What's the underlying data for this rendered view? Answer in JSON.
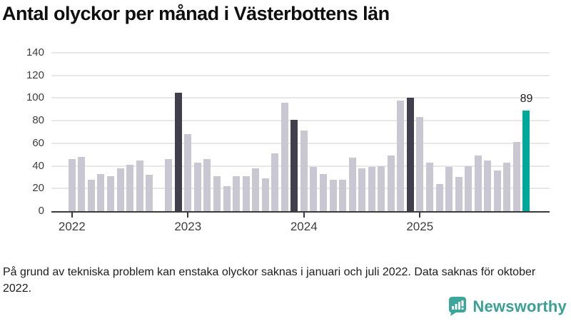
{
  "title": "Antal olyckor per månad i Västerbottens län",
  "footnote": "På grund av tekniska problem kan enstaka olyckor saknas i januari och juli 2022. Data saknas för oktober 2022.",
  "branding": {
    "name": "Newsworthy",
    "icon": "bar-chart-speech-bubble-icon"
  },
  "colors": {
    "bar_normal": "#c9c8d2",
    "bar_december": "#423f4c",
    "bar_latest": "#00a79b",
    "axis": "#3b3b3b",
    "gridline": "#e8e8e8",
    "brand": "#3aa096"
  },
  "chart_data": {
    "type": "bar",
    "title": "Antal olyckor per månad i Västerbottens län",
    "xlabel": "",
    "ylabel": "",
    "ylim": [
      0,
      140
    ],
    "yticks": [
      0,
      20,
      40,
      60,
      80,
      100,
      120,
      140
    ],
    "x_tick_labels": [
      "2022",
      "2023",
      "2024",
      "2025"
    ],
    "grid": true,
    "legend": false,
    "series": [
      {
        "year": "2022",
        "values": [
          46,
          48,
          28,
          33,
          31,
          38,
          41,
          45,
          32,
          null,
          46,
          105
        ]
      },
      {
        "year": "2023",
        "values": [
          68,
          43,
          46,
          31,
          22,
          31,
          31,
          38,
          29,
          51,
          96,
          81
        ]
      },
      {
        "year": "2024",
        "values": [
          71,
          39,
          33,
          28,
          28,
          47,
          38,
          39,
          40,
          49,
          98,
          100
        ]
      },
      {
        "year": "2025",
        "values": [
          83,
          43,
          24,
          39,
          30,
          40,
          49,
          45,
          36,
          43,
          61,
          89
        ]
      }
    ],
    "bar_roles": {
      "dark": [
        "2022-12",
        "2023-12",
        "2024-12"
      ],
      "highlight": [
        "2025-12"
      ],
      "missing": [
        "2022-10"
      ]
    },
    "annotation": {
      "text": "89",
      "month": "2025-12"
    }
  }
}
